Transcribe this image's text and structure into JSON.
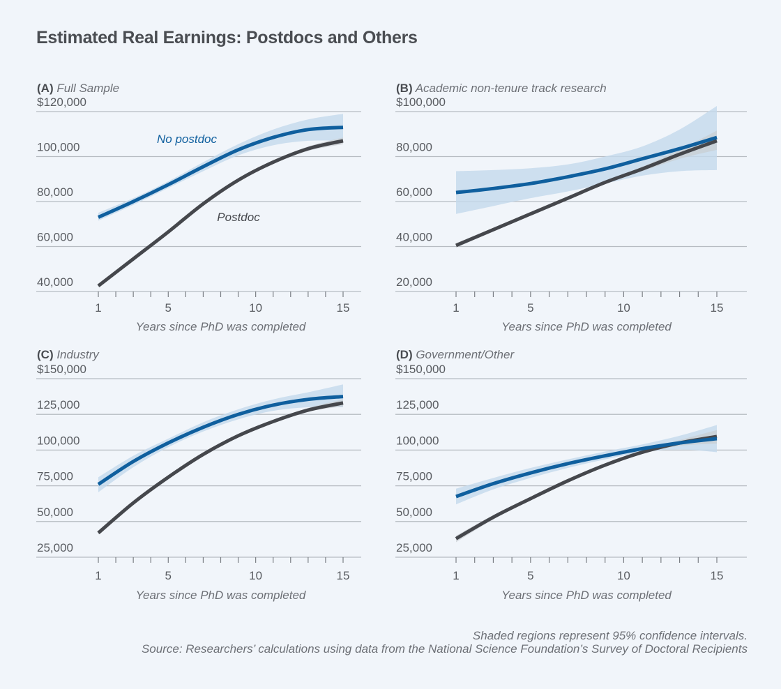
{
  "title": "Estimated Real Earnings: Postdocs and Others",
  "footer": {
    "note": "Shaded regions represent 95% confidence intervals.",
    "source": "Source: Researchers’ calculations using data from the National Science Foundation’s Survey of Doctoral Recipients"
  },
  "colors": {
    "no_postdoc": "#0f5f9e",
    "postdoc": "#45474c",
    "no_postdoc_ci": "#c4d9ec",
    "postdoc_ci": "#c9cdd2",
    "grid": "#b7bcc2",
    "text": "#5a5d62"
  },
  "chart_data": [
    {
      "type": "line",
      "panel": "(A)",
      "title": "Full Sample",
      "xlabel": "Years since PhD was completed",
      "ylabel": "",
      "x": [
        1,
        3,
        5,
        7,
        9,
        11,
        13,
        15
      ],
      "xticks": [
        1,
        5,
        10,
        15
      ],
      "ylim": [
        40000,
        120000
      ],
      "yticks": [
        40000,
        60000,
        80000,
        100000,
        120000
      ],
      "ytick_labels": [
        "40,000",
        "60,000",
        "80,000",
        "100,000",
        "$120,000"
      ],
      "annotations": [
        {
          "text": "No postdoc",
          "series": "No postdoc"
        },
        {
          "text": "Postdoc",
          "series": "Postdoc"
        }
      ],
      "series": [
        {
          "name": "No postdoc",
          "values": [
            73000,
            80000,
            87500,
            95500,
            103000,
            108500,
            112000,
            113000
          ],
          "ci_low": [
            71500,
            78500,
            86000,
            93500,
            100500,
            105000,
            107000,
            107000
          ],
          "ci_high": [
            75000,
            81500,
            89000,
            97500,
            105500,
            112000,
            116500,
            119000
          ]
        },
        {
          "name": "Postdoc",
          "values": [
            42500,
            54500,
            66500,
            79000,
            89500,
            97500,
            103500,
            107000
          ],
          "ci_low": [
            42000,
            54000,
            66000,
            78500,
            89000,
            97000,
            102500,
            105500
          ],
          "ci_high": [
            43000,
            55000,
            67000,
            79500,
            90000,
            98000,
            104500,
            108500
          ]
        }
      ]
    },
    {
      "type": "line",
      "panel": "(B)",
      "title": "Academic non-tenure track research",
      "xlabel": "Years since PhD was completed",
      "ylabel": "",
      "x": [
        1,
        3,
        5,
        7,
        9,
        11,
        13,
        15
      ],
      "xticks": [
        1,
        5,
        10,
        15
      ],
      "ylim": [
        20000,
        100000
      ],
      "yticks": [
        20000,
        40000,
        60000,
        80000,
        100000
      ],
      "ytick_labels": [
        "20,000",
        "40,000",
        "60,000",
        "80,000",
        "$100,000"
      ],
      "series": [
        {
          "name": "No postdoc",
          "values": [
            64000,
            65800,
            68000,
            71000,
            74500,
            79000,
            83500,
            88500
          ],
          "ci_low": [
            54500,
            58000,
            61500,
            64500,
            68000,
            71500,
            73500,
            74000
          ],
          "ci_high": [
            73500,
            74000,
            74800,
            76500,
            80000,
            84500,
            92000,
            102500
          ]
        },
        {
          "name": "Postdoc",
          "values": [
            40500,
            47500,
            54500,
            61500,
            68500,
            74500,
            81000,
            87000
          ],
          "ci_low": [
            39500,
            46800,
            54000,
            61000,
            68000,
            73500,
            79000,
            83000
          ],
          "ci_high": [
            41500,
            48200,
            55000,
            62000,
            69000,
            75500,
            83000,
            91500
          ]
        }
      ]
    },
    {
      "type": "line",
      "panel": "(C)",
      "title": "Industry",
      "xlabel": "Years since PhD was completed",
      "ylabel": "",
      "x": [
        1,
        3,
        5,
        7,
        9,
        11,
        13,
        15
      ],
      "xticks": [
        1,
        5,
        10,
        15
      ],
      "ylim": [
        25000,
        150000
      ],
      "yticks": [
        25000,
        50000,
        75000,
        100000,
        125000,
        150000
      ],
      "ytick_labels": [
        "25,000",
        "50,000",
        "75,000",
        "100,000",
        "125,000",
        "$150,000"
      ],
      "series": [
        {
          "name": "No postdoc",
          "values": [
            76000,
            92000,
            105000,
            116000,
            125000,
            131500,
            135500,
            137500
          ],
          "ci_low": [
            70500,
            88000,
            102000,
            113000,
            121500,
            127500,
            130000,
            130000
          ],
          "ci_high": [
            81000,
            96000,
            108000,
            119500,
            128500,
            135500,
            140500,
            146000
          ]
        },
        {
          "name": "Postdoc",
          "values": [
            42000,
            63000,
            81000,
            97000,
            110000,
            120000,
            128000,
            133000
          ],
          "ci_low": [
            41000,
            62500,
            80500,
            96500,
            109500,
            119500,
            127000,
            130500
          ],
          "ci_high": [
            43000,
            63500,
            81500,
            97500,
            110500,
            121000,
            129500,
            135500
          ]
        }
      ]
    },
    {
      "type": "line",
      "panel": "(D)",
      "title": "Government/Other",
      "xlabel": "Years since PhD was completed",
      "ylabel": "",
      "x": [
        1,
        3,
        5,
        7,
        9,
        11,
        13,
        15
      ],
      "xticks": [
        1,
        5,
        10,
        15
      ],
      "ylim": [
        25000,
        150000
      ],
      "yticks": [
        25000,
        50000,
        75000,
        100000,
        125000,
        150000
      ],
      "ytick_labels": [
        "25,000",
        "50,000",
        "75,000",
        "100,000",
        "125,000",
        "$150,000"
      ],
      "series": [
        {
          "name": "No postdoc",
          "values": [
            67500,
            76500,
            84000,
            90500,
            96000,
            101000,
            105000,
            108000
          ],
          "ci_low": [
            62000,
            72500,
            80500,
            87500,
            93500,
            98500,
            100500,
            98500
          ],
          "ci_high": [
            73000,
            80500,
            87500,
            93500,
            99000,
            104000,
            110000,
            117500
          ]
        },
        {
          "name": "Postdoc",
          "values": [
            38000,
            53000,
            66000,
            78500,
            89500,
            98500,
            105000,
            109500
          ],
          "ci_low": [
            35500,
            51500,
            65000,
            78000,
            89000,
            97500,
            103000,
            104500
          ],
          "ci_high": [
            40000,
            54500,
            67000,
            79000,
            90500,
            99500,
            107000,
            114000
          ]
        }
      ]
    }
  ]
}
